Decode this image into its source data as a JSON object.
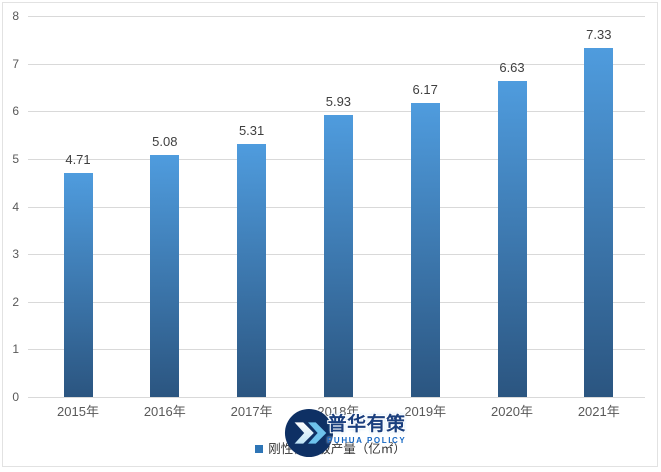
{
  "chart_data": {
    "type": "bar",
    "categories": [
      "2015年",
      "2016年",
      "2017年",
      "2018年",
      "2019年",
      "2020年",
      "2021年"
    ],
    "values": [
      4.71,
      5.08,
      5.31,
      5.93,
      6.17,
      6.63,
      7.33
    ],
    "series_name": "刚性覆铜板产量（亿㎡）",
    "title": "",
    "xlabel": "",
    "ylabel": "",
    "ylim": [
      0,
      8
    ],
    "ytick_interval": 1,
    "grid": true,
    "legend_position": "bottom",
    "value_labels_shown": true,
    "value_label_decimals": 2
  },
  "legend": {
    "label": "刚性覆铜板产量（亿㎡）",
    "marker_color": "#2e75b6"
  },
  "watermark": {
    "cn": "普华有策",
    "en": "PUHUA POLICY",
    "circle_color": "#0e3064",
    "chevron_front_color_top": "#ffffff",
    "chevron_front_color_bottom": "#bfe4f6",
    "chevron_back_color": "#6ec2ec"
  },
  "colors": {
    "bar_gradient_top": "#4f9cde",
    "bar_gradient_bottom": "#2b5580",
    "gridline": "#d9d9d9",
    "axis_text": "#595959",
    "value_text": "#3f3f3f",
    "frame_border": "#e2e2e2"
  }
}
